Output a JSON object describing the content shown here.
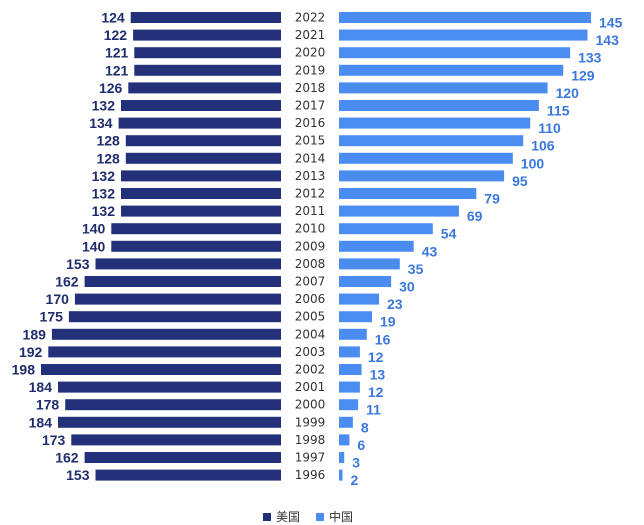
{
  "chart_data": {
    "type": "bar",
    "orientation": "horizontal-butterfly",
    "categories": [
      "2022",
      "2021",
      "2020",
      "2019",
      "2018",
      "2017",
      "2016",
      "2015",
      "2014",
      "2013",
      "2012",
      "2011",
      "2010",
      "2009",
      "2008",
      "2007",
      "2006",
      "2005",
      "2004",
      "2003",
      "2002",
      "2001",
      "2000",
      "1999",
      "1998",
      "1997",
      "1996"
    ],
    "series": [
      {
        "name": "美国",
        "color": "#22317a",
        "side": "left",
        "values": [
          124,
          122,
          121,
          121,
          126,
          132,
          134,
          128,
          128,
          132,
          132,
          132,
          140,
          140,
          153,
          162,
          170,
          175,
          189,
          192,
          198,
          184,
          178,
          184,
          173,
          162,
          153
        ]
      },
      {
        "name": "中国",
        "color": "#4a8cf0",
        "side": "right",
        "values": [
          145,
          143,
          133,
          129,
          120,
          115,
          110,
          106,
          100,
          95,
          79,
          69,
          54,
          43,
          35,
          30,
          23,
          19,
          16,
          12,
          13,
          12,
          11,
          8,
          6,
          3,
          2
        ]
      }
    ],
    "legend": {
      "position": "bottom-center"
    }
  }
}
